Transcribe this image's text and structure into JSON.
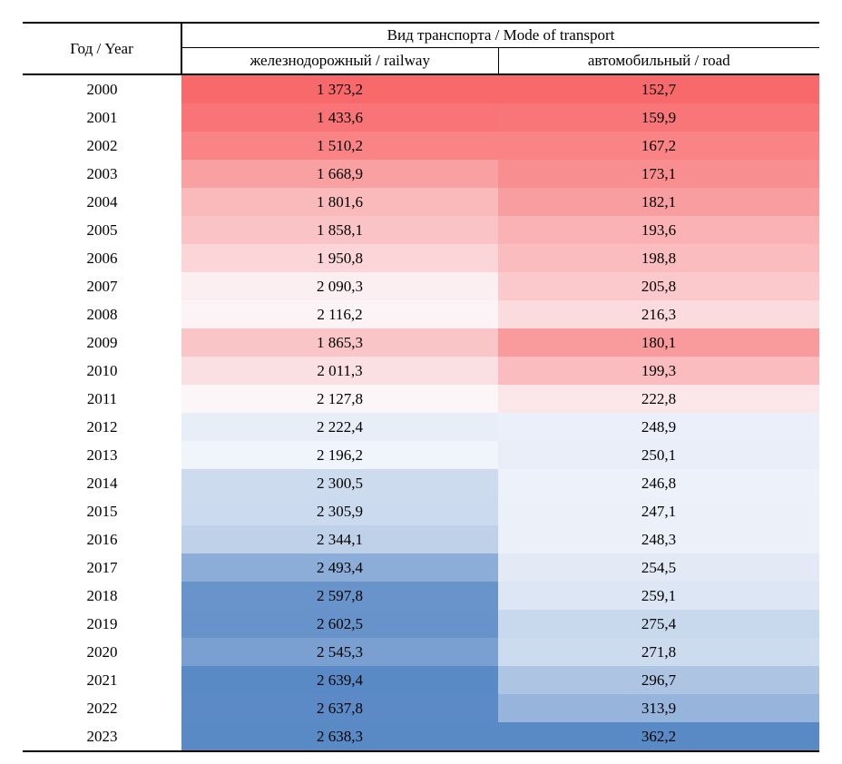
{
  "table": {
    "header": {
      "year_label": "Год / Year",
      "group_label": "Вид транспорта / Mode of transport",
      "railway_label": "железнодорожный / railway",
      "road_label": "автомобильный / road"
    },
    "rows": [
      {
        "year": "2000",
        "railway": "1 373,2",
        "road": "152,7"
      },
      {
        "year": "2001",
        "railway": "1 433,6",
        "road": "159,9"
      },
      {
        "year": "2002",
        "railway": "1 510,2",
        "road": "167,2"
      },
      {
        "year": "2003",
        "railway": "1 668,9",
        "road": "173,1"
      },
      {
        "year": "2004",
        "railway": "1 801,6",
        "road": "182,1"
      },
      {
        "year": "2005",
        "railway": "1 858,1",
        "road": "193,6"
      },
      {
        "year": "2006",
        "railway": "1 950,8",
        "road": "198,8"
      },
      {
        "year": "2007",
        "railway": "2 090,3",
        "road": "205,8"
      },
      {
        "year": "2008",
        "railway": "2 116,2",
        "road": "216,3"
      },
      {
        "year": "2009",
        "railway": "1 865,3",
        "road": "180,1"
      },
      {
        "year": "2010",
        "railway": "2 011,3",
        "road": "199,3"
      },
      {
        "year": "2011",
        "railway": "2 127,8",
        "road": "222,8"
      },
      {
        "year": "2012",
        "railway": "2 222,4",
        "road": "248,9"
      },
      {
        "year": "2013",
        "railway": "2 196,2",
        "road": "250,1"
      },
      {
        "year": "2014",
        "railway": "2 300,5",
        "road": "246,8"
      },
      {
        "year": "2015",
        "railway": "2 305,9",
        "road": "247,1"
      },
      {
        "year": "2016",
        "railway": "2 344,1",
        "road": "248,3"
      },
      {
        "year": "2017",
        "railway": "2 493,4",
        "road": "254,5"
      },
      {
        "year": "2018",
        "railway": "2 597,8",
        "road": "259,1"
      },
      {
        "year": "2019",
        "railway": "2 602,5",
        "road": "275,4"
      },
      {
        "year": "2020",
        "railway": "2 545,3",
        "road": "271,8"
      },
      {
        "year": "2021",
        "railway": "2 639,4",
        "road": "296,7"
      },
      {
        "year": "2022",
        "railway": "2 637,8",
        "road": "313,9"
      },
      {
        "year": "2023",
        "railway": "2 638,3",
        "road": "362,2"
      }
    ]
  },
  "heatmap": {
    "min_color": "#F8696B",
    "mid_color": "#FCFCFF",
    "max_color": "#5A8AC6",
    "midpoint_rule": "50th percentile per column"
  },
  "chart_data": {
    "type": "heatmap",
    "title": "Вид транспорта / Mode of transport",
    "categories": [
      "2000",
      "2001",
      "2002",
      "2003",
      "2004",
      "2005",
      "2006",
      "2007",
      "2008",
      "2009",
      "2010",
      "2011",
      "2012",
      "2013",
      "2014",
      "2015",
      "2016",
      "2017",
      "2018",
      "2019",
      "2020",
      "2021",
      "2022",
      "2023"
    ],
    "series": [
      {
        "name": "железнодорожный / railway",
        "values": [
          1373.2,
          1433.6,
          1510.2,
          1668.9,
          1801.6,
          1858.1,
          1950.8,
          2090.3,
          2116.2,
          1865.3,
          2011.3,
          2127.8,
          2222.4,
          2196.2,
          2300.5,
          2305.9,
          2344.1,
          2493.4,
          2597.8,
          2602.5,
          2545.3,
          2639.4,
          2637.8,
          2638.3
        ]
      },
      {
        "name": "автомобильный / road",
        "values": [
          152.7,
          159.9,
          167.2,
          173.1,
          182.1,
          193.6,
          198.8,
          205.8,
          216.3,
          180.1,
          199.3,
          222.8,
          248.9,
          250.1,
          246.8,
          247.1,
          248.3,
          254.5,
          259.1,
          275.4,
          271.8,
          296.7,
          313.9,
          362.2
        ]
      }
    ],
    "layout": {
      "orientation": "years as rows, modes as columns",
      "color_scale": {
        "min": "#F8696B",
        "mid": "#FCFCFF",
        "max": "#5A8AC6",
        "midpoint": "median of each column"
      },
      "decimal_separator": ",",
      "thousands_separator": " "
    }
  }
}
